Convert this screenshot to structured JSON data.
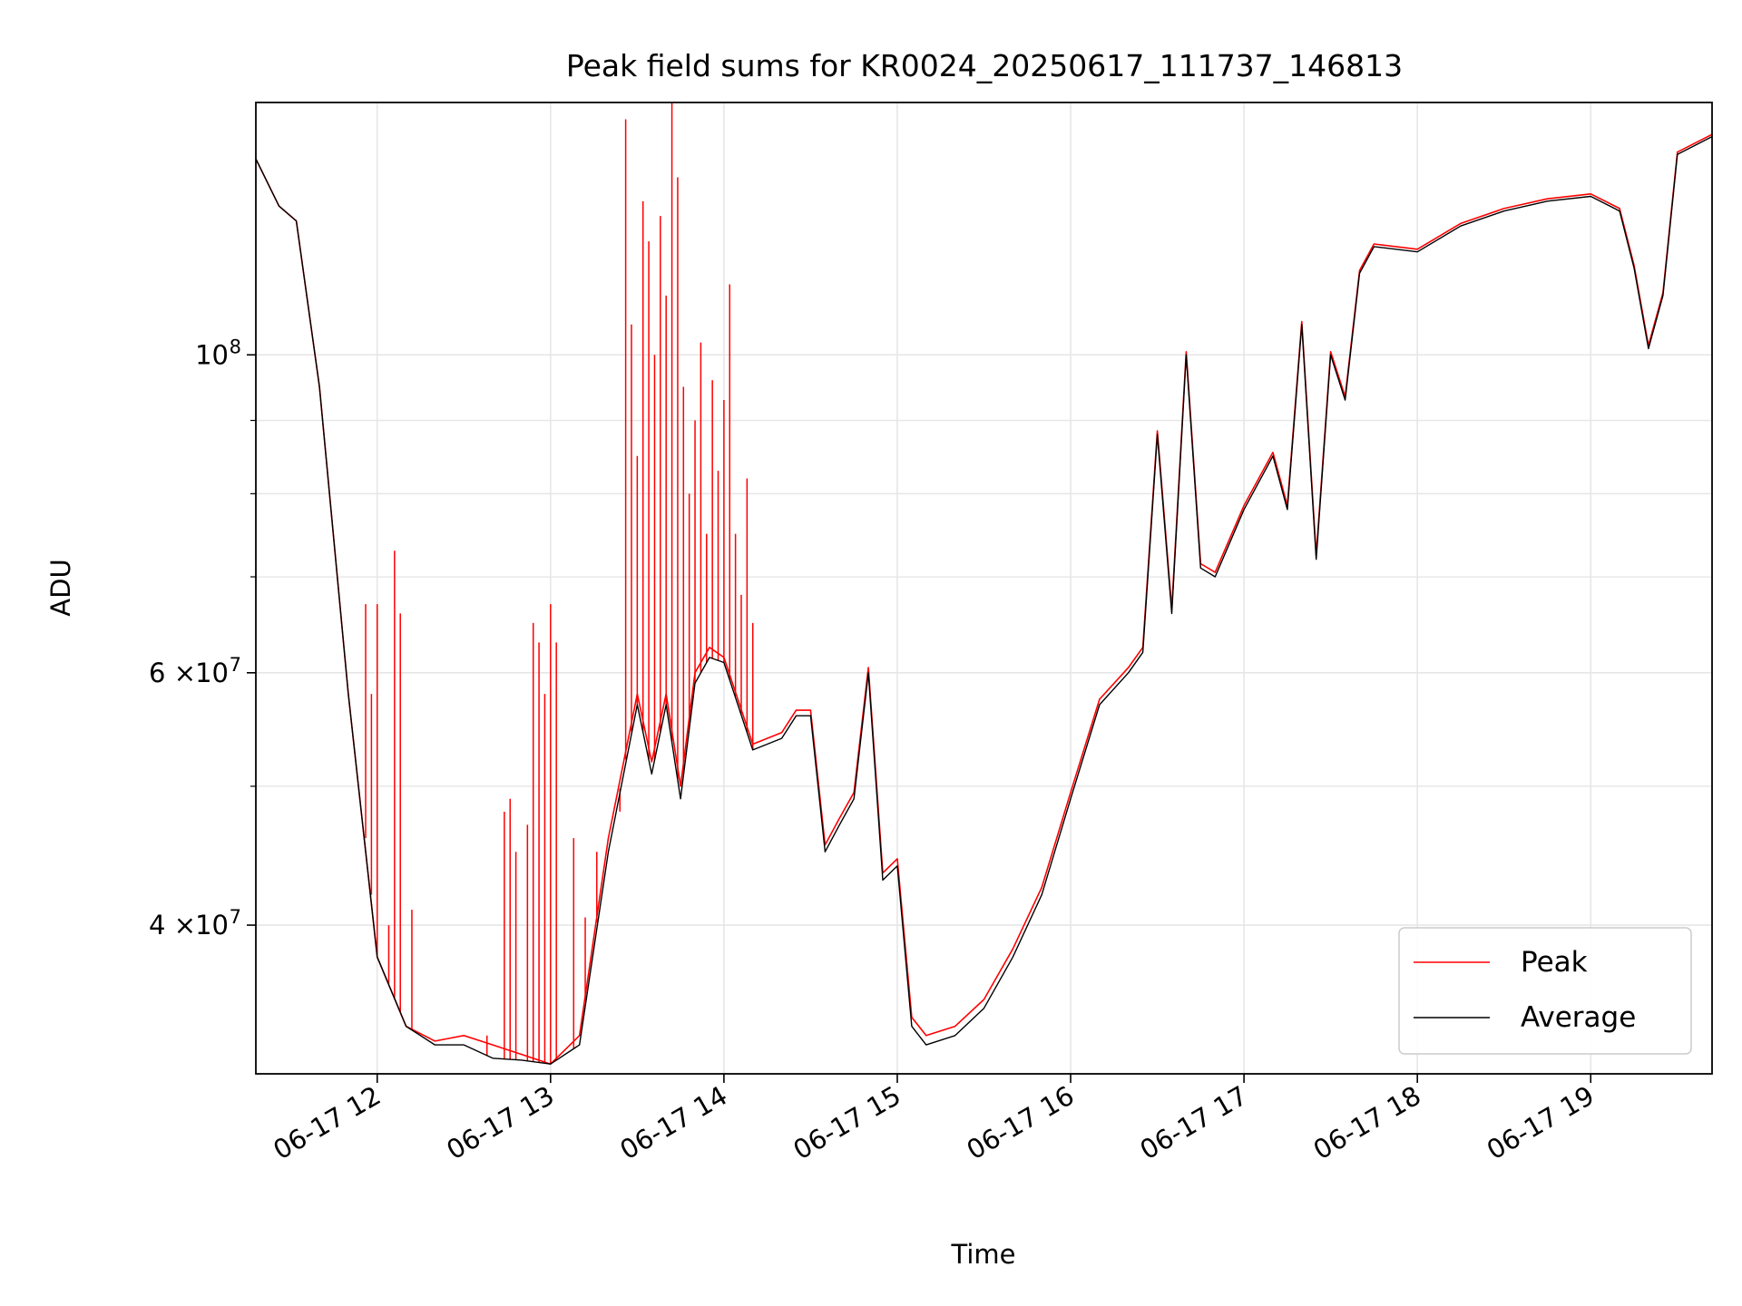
{
  "chart_data": {
    "type": "line",
    "title": "Peak field sums for KR0024_20250617_111737_146813",
    "xlabel": "Time",
    "ylabel": "ADU",
    "y_scale": "log",
    "ylim": [
      31500000,
      150000000
    ],
    "xlim": [
      "06-17 11:18",
      "06-17 19:42"
    ],
    "grid": true,
    "legend_position": "lower-right",
    "x_ticks": [
      "06-17 12",
      "06-17 13",
      "06-17 14",
      "06-17 15",
      "06-17 16",
      "06-17 17",
      "06-17 18",
      "06-17 19"
    ],
    "y_ticks": [
      {
        "value": 40000000,
        "mantissa": "4",
        "exponent": "7"
      },
      {
        "value": 60000000,
        "mantissa": "6",
        "exponent": "7"
      },
      {
        "value": 100000000,
        "mantissa": "",
        "exponent": "8"
      }
    ],
    "y_minor_ticks": [
      50000000,
      70000000,
      80000000,
      90000000
    ],
    "series": [
      {
        "name": "Peak",
        "color": "#ff0000"
      },
      {
        "name": "Average",
        "color": "#000000"
      }
    ],
    "x": [
      "06-17 11:18",
      "06-17 11:26",
      "06-17 11:32",
      "06-17 11:40",
      "06-17 11:50",
      "06-17 12:00",
      "06-17 12:10",
      "06-17 12:20",
      "06-17 12:30",
      "06-17 12:40",
      "06-17 12:50",
      "06-17 13:00",
      "06-17 13:10",
      "06-17 13:20",
      "06-17 13:30",
      "06-17 13:35",
      "06-17 13:40",
      "06-17 13:45",
      "06-17 13:50",
      "06-17 13:55",
      "06-17 14:00",
      "06-17 14:10",
      "06-17 14:20",
      "06-17 14:25",
      "06-17 14:30",
      "06-17 14:35",
      "06-17 14:40",
      "06-17 14:45",
      "06-17 14:50",
      "06-17 14:55",
      "06-17 15:00",
      "06-17 15:05",
      "06-17 15:10",
      "06-17 15:20",
      "06-17 15:30",
      "06-17 15:40",
      "06-17 15:50",
      "06-17 16:00",
      "06-17 16:10",
      "06-17 16:20",
      "06-17 16:25",
      "06-17 16:30",
      "06-17 16:35",
      "06-17 16:40",
      "06-17 16:45",
      "06-17 16:50",
      "06-17 17:00",
      "06-17 17:10",
      "06-17 17:15",
      "06-17 17:20",
      "06-17 17:25",
      "06-17 17:30",
      "06-17 17:35",
      "06-17 17:40",
      "06-17 17:45",
      "06-17 18:00",
      "06-17 18:15",
      "06-17 18:30",
      "06-17 18:45",
      "06-17 19:00",
      "06-17 19:10",
      "06-17 19:15",
      "06-17 19:20",
      "06-17 19:25",
      "06-17 19:30",
      "06-17 19:42"
    ],
    "average": [
      137000000,
      127000000,
      124000000,
      95000000,
      58000000,
      38000000,
      34000000,
      33000000,
      33000000,
      32300000,
      32200000,
      32000000,
      33000000,
      45000000,
      57000000,
      51000000,
      57000000,
      49000000,
      59000000,
      61500000,
      61000000,
      53000000,
      54000000,
      56000000,
      56000000,
      45000000,
      47000000,
      49000000,
      60000000,
      43000000,
      44000000,
      34000000,
      33000000,
      33500000,
      35000000,
      38000000,
      42000000,
      49000000,
      57000000,
      60000000,
      62000000,
      88000000,
      66000000,
      100000000,
      71000000,
      70000000,
      78000000,
      85000000,
      78000000,
      105000000,
      72000000,
      100000000,
      93000000,
      114000000,
      119000000,
      118000000,
      123000000,
      126000000,
      128000000,
      129000000,
      126000000,
      115000000,
      101000000,
      110000000,
      138000000,
      142000000
    ],
    "peak": [
      137000000,
      127000000,
      124000000,
      95000000,
      58000000,
      38000000,
      34000000,
      33200000,
      33500000,
      33000000,
      32500000,
      32000000,
      33500000,
      46000000,
      58000000,
      52000000,
      58000000,
      50000000,
      60000000,
      62500000,
      61500000,
      53500000,
      54500000,
      56500000,
      56500000,
      45500000,
      47500000,
      49500000,
      60500000,
      43500000,
      44500000,
      34500000,
      33500000,
      34000000,
      35500000,
      38500000,
      42500000,
      49500000,
      57500000,
      60500000,
      62500000,
      88500000,
      66500000,
      100500000,
      71500000,
      70500000,
      78500000,
      85500000,
      78500000,
      105500000,
      72500000,
      100500000,
      93500000,
      114500000,
      119500000,
      118500000,
      123500000,
      126500000,
      128500000,
      129500000,
      126500000,
      115500000,
      101500000,
      110500000,
      138500000,
      142500000
    ],
    "peak_spikes": [
      {
        "x": "06-17 11:56",
        "y": 67000000
      },
      {
        "x": "06-17 11:58",
        "y": 58000000
      },
      {
        "x": "06-17 12:00",
        "y": 67000000
      },
      {
        "x": "06-17 12:04",
        "y": 40000000
      },
      {
        "x": "06-17 12:06",
        "y": 73000000
      },
      {
        "x": "06-17 12:08",
        "y": 66000000
      },
      {
        "x": "06-17 12:12",
        "y": 41000000
      },
      {
        "x": "06-17 12:38",
        "y": 33500000
      },
      {
        "x": "06-17 12:44",
        "y": 48000000
      },
      {
        "x": "06-17 12:46",
        "y": 49000000
      },
      {
        "x": "06-17 12:48",
        "y": 45000000
      },
      {
        "x": "06-17 12:52",
        "y": 47000000
      },
      {
        "x": "06-17 12:54",
        "y": 65000000
      },
      {
        "x": "06-17 12:56",
        "y": 63000000
      },
      {
        "x": "06-17 12:58",
        "y": 58000000
      },
      {
        "x": "06-17 13:00",
        "y": 67000000
      },
      {
        "x": "06-17 13:02",
        "y": 63000000
      },
      {
        "x": "06-17 13:08",
        "y": 46000000
      },
      {
        "x": "06-17 13:12",
        "y": 40500000
      },
      {
        "x": "06-17 13:16",
        "y": 45000000
      },
      {
        "x": "06-17 13:24",
        "y": 48000000
      },
      {
        "x": "06-17 13:26",
        "y": 146000000
      },
      {
        "x": "06-17 13:28",
        "y": 105000000
      },
      {
        "x": "06-17 13:30",
        "y": 85000000
      },
      {
        "x": "06-17 13:32",
        "y": 128000000
      },
      {
        "x": "06-17 13:34",
        "y": 120000000
      },
      {
        "x": "06-17 13:36",
        "y": 100000000
      },
      {
        "x": "06-17 13:38",
        "y": 125000000
      },
      {
        "x": "06-17 13:40",
        "y": 110000000
      },
      {
        "x": "06-17 13:42",
        "y": 150000000
      },
      {
        "x": "06-17 13:44",
        "y": 133000000
      },
      {
        "x": "06-17 13:46",
        "y": 95000000
      },
      {
        "x": "06-17 13:48",
        "y": 80000000
      },
      {
        "x": "06-17 13:50",
        "y": 90000000
      },
      {
        "x": "06-17 13:52",
        "y": 102000000
      },
      {
        "x": "06-17 13:54",
        "y": 75000000
      },
      {
        "x": "06-17 13:56",
        "y": 96000000
      },
      {
        "x": "06-17 13:58",
        "y": 83000000
      },
      {
        "x": "06-17 14:00",
        "y": 93000000
      },
      {
        "x": "06-17 14:02",
        "y": 112000000
      },
      {
        "x": "06-17 14:04",
        "y": 75000000
      },
      {
        "x": "06-17 14:06",
        "y": 68000000
      },
      {
        "x": "06-17 14:08",
        "y": 82000000
      },
      {
        "x": "06-17 14:10",
        "y": 65000000
      }
    ]
  }
}
